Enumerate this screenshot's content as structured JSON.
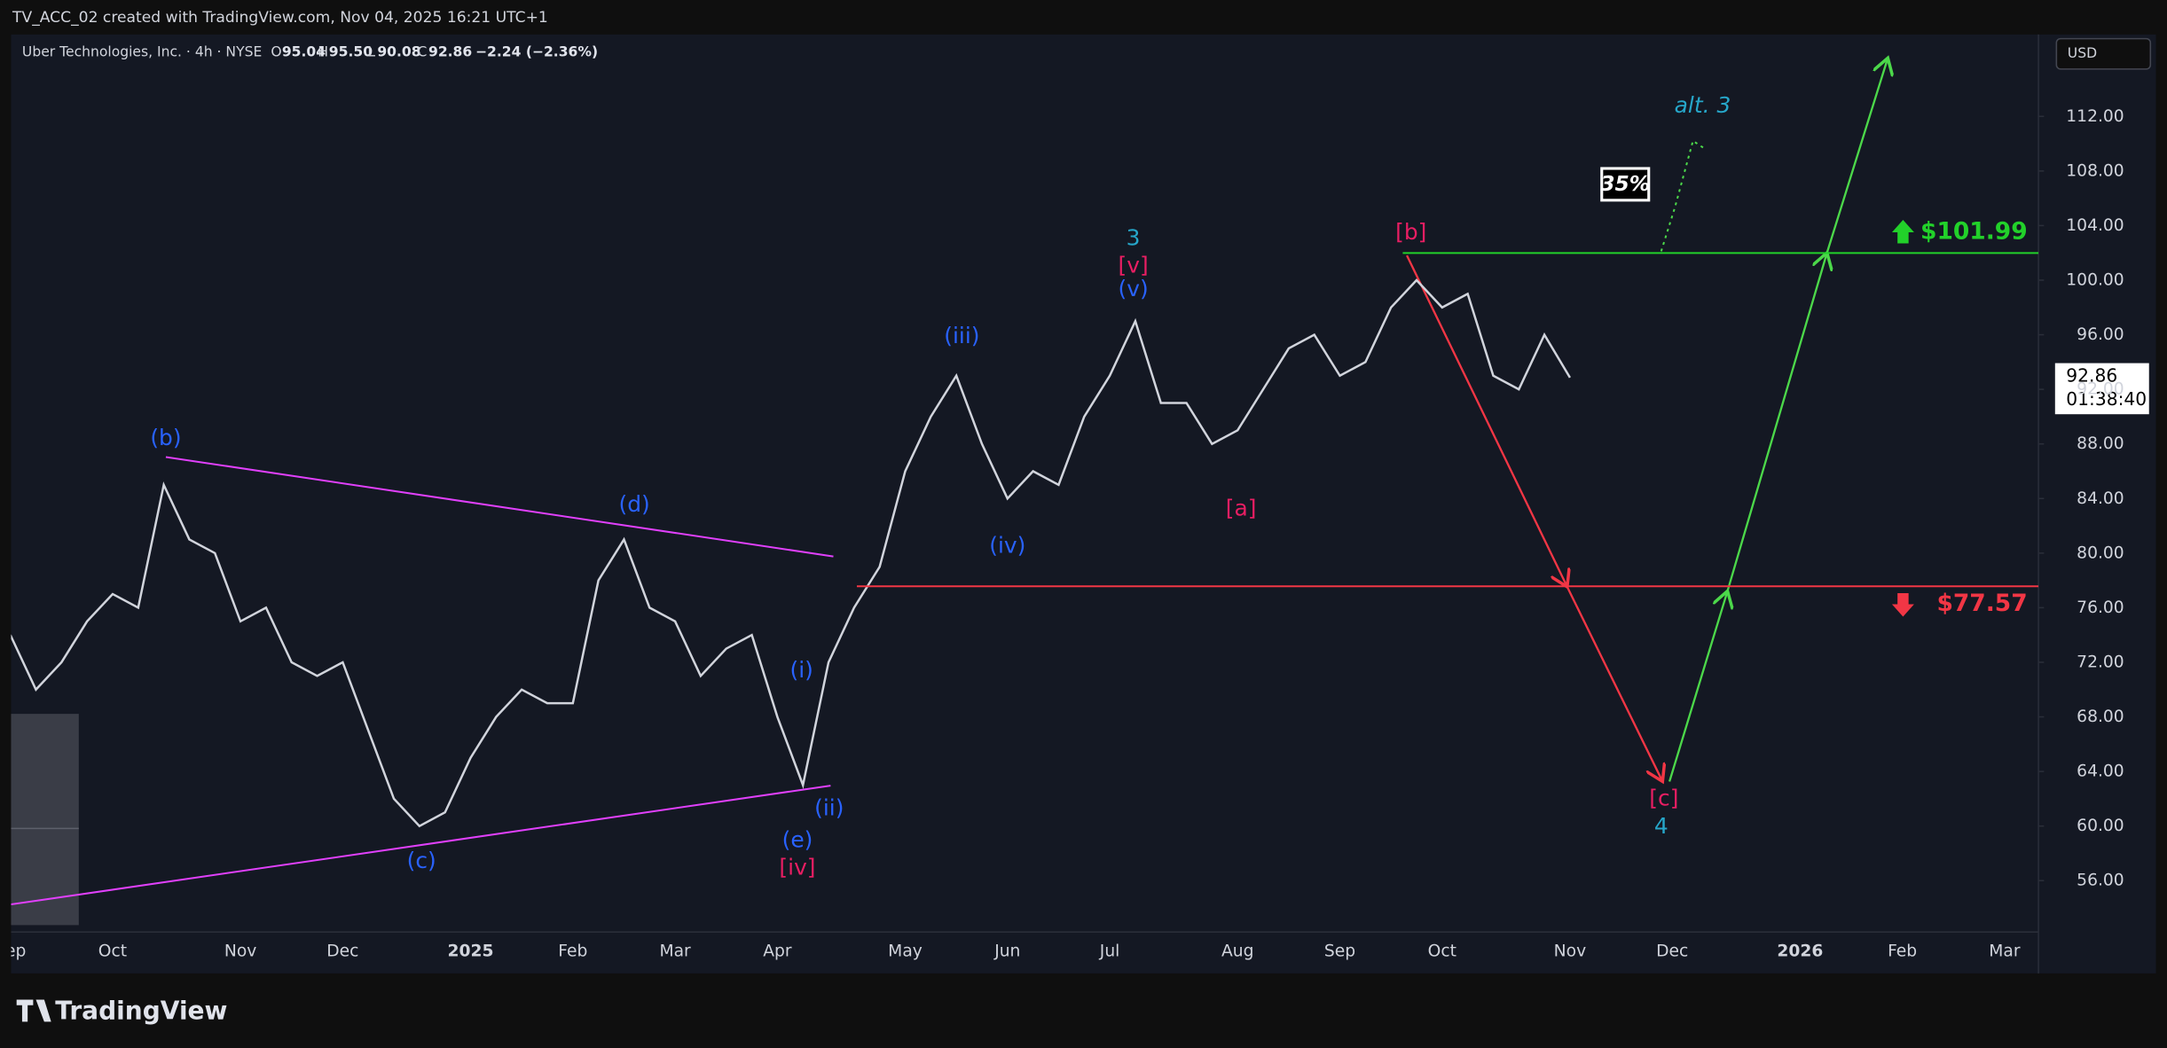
{
  "header": {
    "caption": "TV_ACC_02 created with TradingView.com, Nov 04, 2025 16:21 UTC+1",
    "logo": "TradingView"
  },
  "legend": {
    "symbol": "Uber Technologies, Inc. · 4h · NYSE",
    "open_label": "O",
    "open": "95.04",
    "high_label": "H",
    "high": "95.50",
    "low_label": "L",
    "low": "90.08",
    "close_label": "C",
    "close": "92.86",
    "change": "−2.24 (−2.36%)"
  },
  "currency": "USD",
  "price_tag": {
    "price": "92.86",
    "countdown": "01:38:40"
  },
  "chart_data": {
    "type": "line",
    "categories": [
      "Sep",
      null,
      null,
      null,
      "Oct",
      null,
      null,
      null,
      null,
      "Nov",
      null,
      null,
      null,
      "Dec",
      null,
      null,
      null,
      null,
      "2025",
      null,
      null,
      null,
      "Feb",
      null,
      null,
      null,
      "Mar",
      null,
      null,
      null,
      "Apr",
      null,
      null,
      null,
      null,
      "May",
      null,
      null,
      null,
      "Jun",
      null,
      null,
      null,
      "Jul",
      null,
      null,
      null,
      null,
      "Aug",
      null,
      null,
      null,
      "Sep",
      null,
      null,
      null,
      "Oct",
      null,
      null,
      null,
      null,
      "Nov",
      null,
      null,
      null,
      "Dec",
      null,
      null,
      null,
      null,
      "2026",
      null,
      null,
      null,
      "Feb",
      null,
      null,
      null,
      "Mar",
      null,
      null,
      null,
      null
    ],
    "series": [
      {
        "name": "UBER",
        "color": "#d1d4dc",
        "values": [
          74,
          70,
          72,
          75,
          77,
          76,
          85,
          81,
          80,
          75,
          76,
          72,
          71,
          72,
          67,
          62,
          60,
          61,
          65,
          68,
          70,
          69,
          69,
          78,
          81,
          76,
          75,
          71,
          73,
          74,
          68,
          63,
          72,
          76,
          79,
          86,
          90,
          93,
          88,
          84,
          86,
          85,
          90,
          93,
          97,
          91,
          91,
          88,
          89,
          92,
          95,
          96,
          93,
          94,
          98,
          100,
          98,
          99,
          93,
          92,
          96,
          92.86,
          null,
          null,
          null,
          null,
          null,
          null,
          null,
          null,
          null,
          null,
          null,
          null,
          null,
          null,
          null,
          null,
          null,
          null,
          null,
          null,
          null
        ]
      }
    ],
    "ylim": [
      49.2,
      118
    ],
    "yticks": [
      {
        "value": 56,
        "label": "56.00"
      },
      {
        "value": 60,
        "label": "60.00"
      },
      {
        "value": 64,
        "label": "64.00"
      },
      {
        "value": 68,
        "label": "68.00"
      },
      {
        "value": 72,
        "label": "72.00"
      },
      {
        "value": 76,
        "label": "76.00"
      },
      {
        "value": 80,
        "label": "80.00"
      },
      {
        "value": 84,
        "label": "84.00"
      },
      {
        "value": 88,
        "label": "88.00"
      },
      {
        "value": 92,
        "label": "92.00"
      },
      {
        "value": 96,
        "label": "96.00"
      },
      {
        "value": 100,
        "label": "100.00"
      },
      {
        "value": 104,
        "label": "104.00"
      },
      {
        "value": 108,
        "label": "108.00"
      },
      {
        "value": 112,
        "label": "112.00"
      }
    ],
    "grid": false,
    "levels": [
      {
        "value": 101.99,
        "label": "$101.99",
        "color": "#22d12a"
      },
      {
        "value": 77.57,
        "label": "$77.57",
        "color": "#f23645"
      }
    ],
    "annotations": [
      {
        "text": "(b)",
        "color": "#2962ff"
      },
      {
        "text": "(d)",
        "color": "#2962ff"
      },
      {
        "text": "(c)",
        "color": "#2962ff"
      },
      {
        "text": "(e)",
        "color": "#2962ff"
      },
      {
        "text": "[iv]",
        "color": "#e91e63"
      },
      {
        "text": "(i)",
        "color": "#2962ff"
      },
      {
        "text": "(ii)",
        "color": "#2962ff"
      },
      {
        "text": "(iii)",
        "color": "#2962ff"
      },
      {
        "text": "(iv)",
        "color": "#2962ff"
      },
      {
        "text": "3",
        "color": "#26a6c9"
      },
      {
        "text": "[v]",
        "color": "#e91e63"
      },
      {
        "text": "(v)",
        "color": "#2962ff"
      },
      {
        "text": "[a]",
        "color": "#e91e63"
      },
      {
        "text": "[b]",
        "color": "#e91e63"
      },
      {
        "text": "[c]",
        "color": "#e91e63"
      },
      {
        "text": "4",
        "color": "#26a6c9"
      },
      {
        "text": "alt. 3",
        "color": "#26a6c9"
      },
      {
        "text": "35%",
        "color": "#ffffff"
      }
    ]
  }
}
